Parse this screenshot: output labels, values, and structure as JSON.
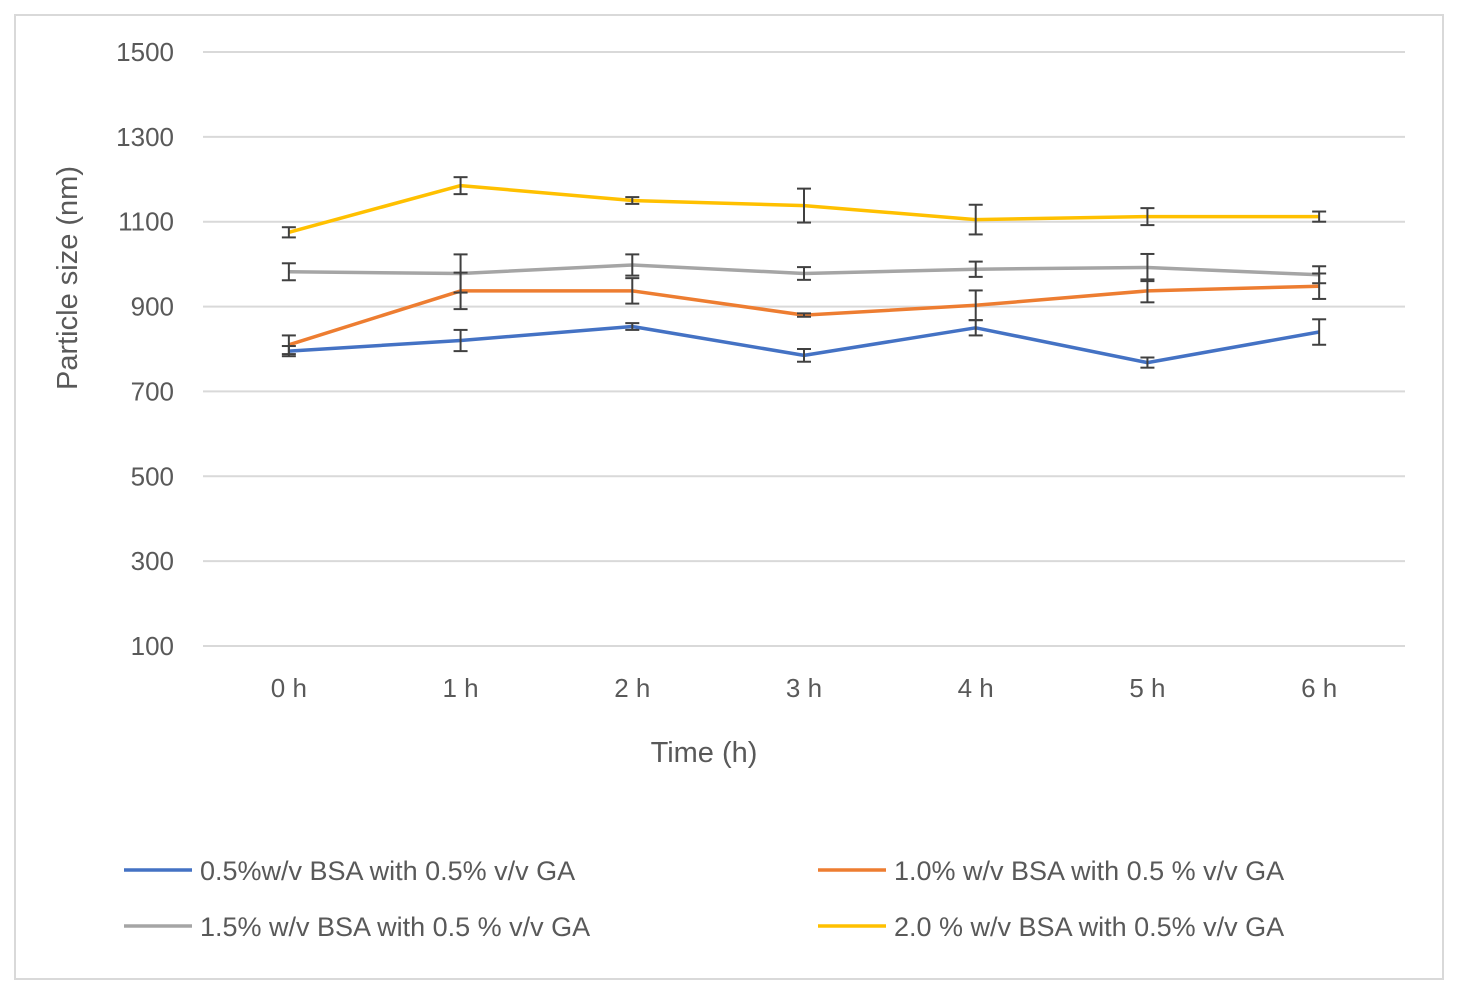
{
  "chart_data": {
    "type": "line",
    "title": "",
    "xlabel": "Time (h)",
    "ylabel": "Particle size (nm)",
    "categories": [
      "0 h",
      "1 h",
      "2 h",
      "3 h",
      "4 h",
      "5 h",
      "6 h"
    ],
    "yticks": [
      "100",
      "300",
      "500",
      "700",
      "900",
      "1100",
      "1300",
      "1500"
    ],
    "ylim": [
      100,
      1500
    ],
    "grid": true,
    "legend_position": "bottom",
    "series": [
      {
        "name": "0.5%w/v BSA with 0.5% v/v GA",
        "color": "#4472c4",
        "values": [
          795,
          820,
          853,
          785,
          850,
          768,
          840
        ],
        "errors": [
          12,
          25,
          8,
          15,
          18,
          12,
          30
        ]
      },
      {
        "name": "1.0% w/v BSA with 0.5 % v/v GA",
        "color": "#ed7d31",
        "values": [
          810,
          937,
          937,
          880,
          903,
          937,
          948
        ],
        "errors": [
          22,
          43,
          30,
          4,
          35,
          27,
          30
        ]
      },
      {
        "name": "1.5% w/v BSA with 0.5 % v/v GA",
        "color": "#a5a5a5",
        "values": [
          982,
          978,
          998,
          978,
          988,
          992,
          975
        ],
        "errors": [
          20,
          45,
          25,
          15,
          18,
          32,
          20
        ]
      },
      {
        "name": "2.0 % w/v BSA with 0.5% v/v GA",
        "color": "#ffc000",
        "values": [
          1075,
          1185,
          1150,
          1138,
          1105,
          1112,
          1112
        ],
        "errors": [
          12,
          20,
          8,
          40,
          35,
          20,
          12
        ]
      }
    ]
  }
}
